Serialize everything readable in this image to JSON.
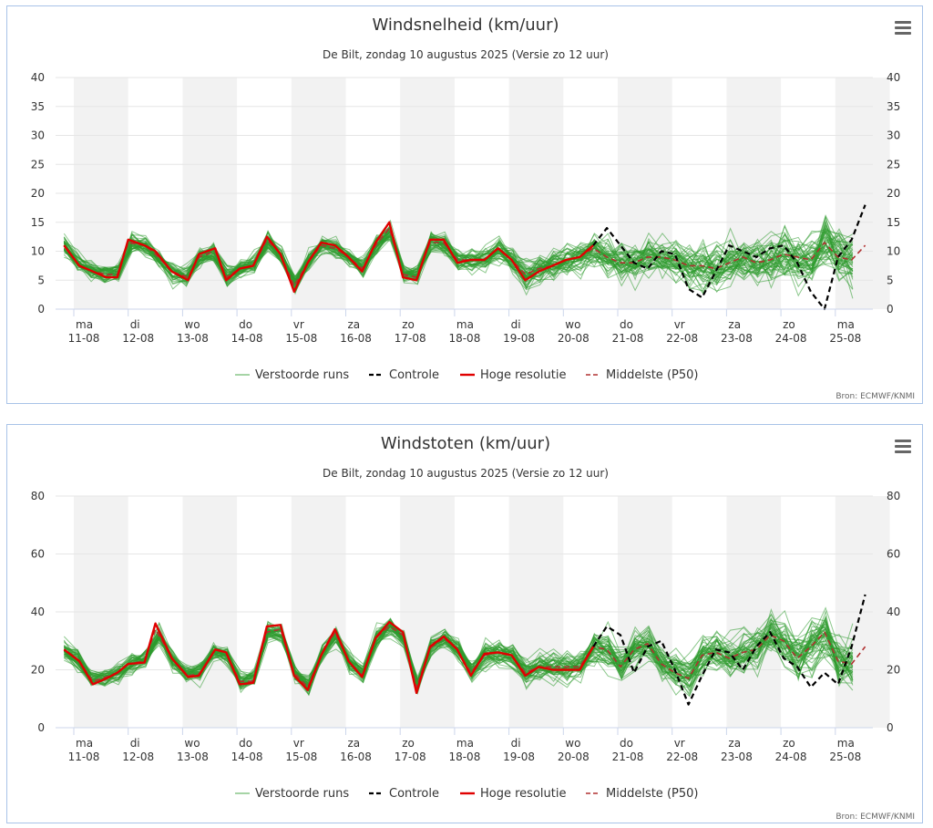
{
  "colors": {
    "perturbed": "#2e9a2e",
    "control": "#000000",
    "hires": "#e00000",
    "median": "#b03030",
    "shade": "#f2f2f2",
    "grid": "#e6e6e6",
    "border": "#a8c3e8"
  },
  "icons": {
    "menu": "hamburger-menu-icon"
  },
  "chart_data": [
    {
      "type": "line",
      "title": "Windsnelheid (km/uur)",
      "subtitle": "De Bilt, zondag 10 augustus 2025 (Versie zo 12 uur)",
      "xlabel": "",
      "ylabel": "",
      "ylim": [
        0,
        40
      ],
      "yticks": [
        "0",
        "5",
        "10",
        "15",
        "20",
        "25",
        "30",
        "35",
        "40"
      ],
      "ytick_values": [
        0,
        5,
        10,
        15,
        20,
        25,
        30,
        35,
        40
      ],
      "xticks": [
        {
          "day": "ma",
          "date": "11-08"
        },
        {
          "day": "di",
          "date": "12-08"
        },
        {
          "day": "wo",
          "date": "13-08"
        },
        {
          "day": "do",
          "date": "14-08"
        },
        {
          "day": "vr",
          "date": "15-08"
        },
        {
          "day": "za",
          "date": "16-08"
        },
        {
          "day": "zo",
          "date": "17-08"
        },
        {
          "day": "ma",
          "date": "18-08"
        },
        {
          "day": "di",
          "date": "19-08"
        },
        {
          "day": "wo",
          "date": "20-08"
        },
        {
          "day": "do",
          "date": "21-08"
        },
        {
          "day": "vr",
          "date": "22-08"
        },
        {
          "day": "za",
          "date": "23-08"
        },
        {
          "day": "zo",
          "date": "24-08"
        },
        {
          "day": "ma",
          "date": "25-08"
        }
      ],
      "x_range_days": [
        0,
        15
      ],
      "shaded_days": [
        0,
        2,
        4,
        6,
        8,
        10,
        12,
        14
      ],
      "grid": true,
      "legend_position": "bottom-center",
      "legend": [
        "Verstoorde runs",
        "Controle",
        "Hoge resolutie",
        "Middelste (P50)"
      ],
      "credit": "Bron: ECMWF/KNMI",
      "ensemble_member_count": 50,
      "series": [
        {
          "name": "Hoge resolutie",
          "x": [
            -0.18,
            0.1,
            0.35,
            0.6,
            0.8,
            1.0,
            1.3,
            1.5,
            1.8,
            2.1,
            2.3,
            2.6,
            2.8,
            3.05,
            3.3,
            3.55,
            3.8,
            4.05,
            4.3,
            4.55,
            4.8,
            5.05,
            5.3,
            5.55,
            5.8,
            6.05,
            6.3,
            6.55,
            6.8,
            7.05,
            7.3,
            7.55,
            7.8,
            8.05,
            8.3,
            8.55,
            8.8,
            9.05,
            9.3,
            9.55
          ],
          "values": [
            11,
            7.5,
            6.5,
            5.5,
            5.5,
            12,
            11,
            10,
            6.5,
            5,
            9.5,
            10.5,
            5,
            7,
            7.5,
            12.5,
            9.5,
            3,
            8,
            11.5,
            11,
            9,
            6.5,
            11.5,
            15,
            5.5,
            5,
            12,
            12,
            8,
            8.5,
            8.5,
            10.5,
            8.5,
            5,
            6.5,
            7.5,
            8.5,
            9,
            11
          ]
        },
        {
          "name": "Controle",
          "x": [
            9.55,
            9.8,
            10.05,
            10.3,
            10.55,
            10.8,
            11.05,
            11.3,
            11.55,
            11.8,
            12.05,
            12.3,
            12.55,
            12.8,
            13.05,
            13.3,
            13.55,
            13.8,
            14.05,
            14.3,
            14.55
          ],
          "values": [
            11,
            14,
            11,
            8,
            7,
            10,
            9.5,
            3.5,
            2,
            6.5,
            11,
            10,
            9,
            10.5,
            11,
            8,
            3,
            0,
            9,
            12,
            18
          ]
        },
        {
          "name": "Middelste (P50)",
          "x": [
            -0.18,
            0.1,
            0.35,
            0.6,
            0.8,
            1.0,
            1.3,
            1.5,
            1.8,
            2.1,
            2.3,
            2.6,
            2.8,
            3.05,
            3.3,
            3.55,
            3.8,
            4.05,
            4.3,
            4.55,
            4.8,
            5.05,
            5.3,
            5.55,
            5.8,
            6.05,
            6.3,
            6.55,
            6.8,
            7.05,
            7.3,
            7.55,
            7.8,
            8.05,
            8.3,
            8.55,
            8.8,
            9.05,
            9.3,
            9.55,
            9.8,
            10.05,
            10.3,
            10.55,
            10.8,
            11.05,
            11.3,
            11.55,
            11.8,
            12.05,
            12.3,
            12.55,
            12.8,
            13.05,
            13.3,
            13.55,
            13.8,
            14.05,
            14.3,
            14.55
          ],
          "values": [
            11,
            7.5,
            6.5,
            6,
            6,
            11.5,
            11,
            9.5,
            6.5,
            5.5,
            9,
            10,
            5.5,
            7,
            7.5,
            12,
            9.5,
            4,
            8,
            11,
            10.5,
            9,
            7,
            11,
            14,
            6,
            5.5,
            11.5,
            11.5,
            8.5,
            8.5,
            8.5,
            10.5,
            8.5,
            6,
            7,
            7.5,
            8.5,
            9,
            10.5,
            9,
            8,
            8,
            9,
            9,
            8.5,
            7.5,
            7.5,
            7,
            8,
            9,
            8,
            8.5,
            9.5,
            9,
            8.5,
            11.5,
            9,
            8.5,
            11
          ]
        }
      ]
    },
    {
      "type": "line",
      "title": "Windstoten (km/uur)",
      "subtitle": "De Bilt, zondag 10 augustus 2025 (Versie zo 12 uur)",
      "xlabel": "",
      "ylabel": "",
      "ylim": [
        0,
        80
      ],
      "yticks": [
        "0",
        "20",
        "40",
        "60",
        "80"
      ],
      "ytick_values": [
        0,
        20,
        40,
        60,
        80
      ],
      "xticks": [
        {
          "day": "ma",
          "date": "11-08"
        },
        {
          "day": "di",
          "date": "12-08"
        },
        {
          "day": "wo",
          "date": "13-08"
        },
        {
          "day": "do",
          "date": "14-08"
        },
        {
          "day": "vr",
          "date": "15-08"
        },
        {
          "day": "za",
          "date": "16-08"
        },
        {
          "day": "zo",
          "date": "17-08"
        },
        {
          "day": "ma",
          "date": "18-08"
        },
        {
          "day": "di",
          "date": "19-08"
        },
        {
          "day": "wo",
          "date": "20-08"
        },
        {
          "day": "do",
          "date": "21-08"
        },
        {
          "day": "vr",
          "date": "22-08"
        },
        {
          "day": "za",
          "date": "23-08"
        },
        {
          "day": "zo",
          "date": "24-08"
        },
        {
          "day": "ma",
          "date": "25-08"
        }
      ],
      "x_range_days": [
        0,
        15
      ],
      "shaded_days": [
        0,
        2,
        4,
        6,
        8,
        10,
        12,
        14
      ],
      "grid": true,
      "legend_position": "bottom-center",
      "legend": [
        "Verstoorde runs",
        "Controle",
        "Hoge resolutie",
        "Middelste (P50)"
      ],
      "credit": "Bron: ECMWF/KNMI",
      "ensemble_member_count": 50,
      "series": [
        {
          "name": "Hoge resolutie",
          "x": [
            -0.18,
            0.1,
            0.35,
            0.6,
            0.8,
            1.0,
            1.3,
            1.5,
            1.8,
            2.1,
            2.3,
            2.6,
            2.8,
            3.05,
            3.3,
            3.55,
            3.8,
            4.05,
            4.3,
            4.55,
            4.8,
            5.05,
            5.3,
            5.55,
            5.8,
            6.05,
            6.3,
            6.55,
            6.8,
            7.05,
            7.3,
            7.55,
            7.8,
            8.05,
            8.3,
            8.55,
            8.8,
            9.05,
            9.3,
            9.55
          ],
          "values": [
            27,
            23,
            15,
            17,
            19,
            22,
            22.5,
            36,
            24,
            17.5,
            18,
            27,
            26,
            15,
            15.5,
            35,
            35.5,
            18,
            13,
            25,
            34,
            23,
            17.5,
            31,
            36.5,
            33,
            12,
            28,
            31.5,
            27,
            18,
            25.5,
            26,
            25,
            18,
            21,
            20,
            20,
            20,
            28
          ]
        },
        {
          "name": "Controle",
          "x": [
            9.55,
            9.8,
            10.05,
            10.3,
            10.55,
            10.8,
            11.05,
            11.3,
            11.55,
            11.8,
            12.05,
            12.3,
            12.55,
            12.8,
            13.05,
            13.3,
            13.55,
            13.8,
            14.05,
            14.3,
            14.55
          ],
          "values": [
            28,
            35,
            32,
            19,
            28,
            30,
            20,
            8,
            18,
            27,
            26,
            20,
            28,
            33,
            24,
            21,
            14,
            19,
            15,
            28,
            46
          ]
        },
        {
          "name": "Middelste (P50)",
          "x": [
            -0.18,
            0.1,
            0.35,
            0.6,
            0.8,
            1.0,
            1.3,
            1.5,
            1.8,
            2.1,
            2.3,
            2.6,
            2.8,
            3.05,
            3.3,
            3.55,
            3.8,
            4.05,
            4.3,
            4.55,
            4.8,
            5.05,
            5.3,
            5.55,
            5.8,
            6.05,
            6.3,
            6.55,
            6.8,
            7.05,
            7.3,
            7.55,
            7.8,
            8.05,
            8.3,
            8.55,
            8.8,
            9.05,
            9.3,
            9.55,
            9.8,
            10.05,
            10.3,
            10.55,
            10.8,
            11.05,
            11.3,
            11.55,
            11.8,
            12.05,
            12.3,
            12.55,
            12.8,
            13.05,
            13.3,
            13.55,
            13.8,
            14.05,
            14.3,
            14.55
          ],
          "values": [
            27,
            23,
            16,
            17.5,
            19,
            22,
            23,
            34,
            24,
            18,
            18.5,
            27,
            26,
            16,
            16,
            33,
            34,
            19,
            14,
            25,
            33,
            23,
            18,
            31,
            35,
            32,
            14,
            27.5,
            31,
            27,
            19,
            25,
            26,
            25,
            19,
            21,
            21,
            21,
            21,
            28,
            27,
            21,
            27,
            29,
            22,
            19,
            17,
            25,
            26,
            24,
            26,
            27,
            32,
            30,
            24,
            28,
            33,
            23,
            22,
            28
          ]
        }
      ]
    }
  ]
}
